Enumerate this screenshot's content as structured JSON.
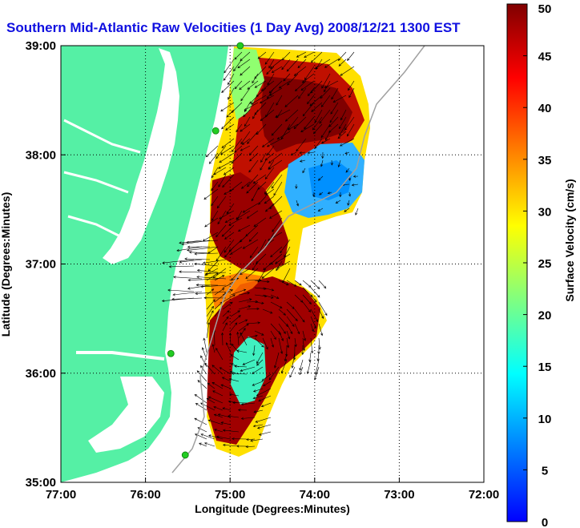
{
  "chart_data": {
    "type": "heatmap",
    "title": "Southern Mid-Atlantic Raw Velocities (1 Day Avg) 2008/12/21 1300 EST",
    "xlabel": "Longitude (Degrees:Minutes)",
    "ylabel": "Latitude (Degrees:Minutes)",
    "colorbar_label": "Surface Velocity (cm/s)",
    "xlim": [
      -77,
      -72
    ],
    "ylim": [
      35,
      39
    ],
    "clim": [
      0,
      50
    ],
    "grid": true,
    "x_ticks": [
      {
        "value": -77,
        "label": "77:00"
      },
      {
        "value": -76,
        "label": "76:00"
      },
      {
        "value": -75,
        "label": "75:00"
      },
      {
        "value": -74,
        "label": "74:00"
      },
      {
        "value": -73,
        "label": "73:00"
      },
      {
        "value": -72,
        "label": "72:00"
      }
    ],
    "y_ticks": [
      {
        "value": 35,
        "label": "35:00"
      },
      {
        "value": 36,
        "label": "36:00"
      },
      {
        "value": 37,
        "label": "37:00"
      },
      {
        "value": 38,
        "label": "38:00"
      },
      {
        "value": 39,
        "label": "39:00"
      }
    ],
    "colorbar_ticks": [
      0,
      5,
      10,
      15,
      20,
      25,
      30,
      35,
      40,
      45,
      50
    ],
    "colormap": [
      "#0000ff",
      "#0080ff",
      "#00ffff",
      "#80ff80",
      "#ffff00",
      "#ff8000",
      "#ff0000",
      "#800000"
    ],
    "land_color": "#55f0a5",
    "radar_site_color": "#22cc22",
    "radar_sites": [
      {
        "lon": -74.88,
        "lat": 39.0
      },
      {
        "lon": -75.17,
        "lat": 38.22
      },
      {
        "lon": -75.7,
        "lat": 36.18
      },
      {
        "lon": -75.53,
        "lat": 35.25
      }
    ],
    "velocity_regions": [
      {
        "name": "northern-coastal-jet",
        "lon": [
          -75.2,
          -73.7
        ],
        "lat": [
          37.4,
          39.0
        ],
        "speed": 45
      },
      {
        "name": "offshore-slow-zone",
        "lon": [
          -74.4,
          -73.4
        ],
        "lat": [
          37.4,
          38.1
        ],
        "speed": 9
      },
      {
        "name": "central-coastal-jet",
        "lon": [
          -75.3,
          -74.2
        ],
        "lat": [
          36.7,
          37.6
        ],
        "speed": 48
      },
      {
        "name": "southern-eddy",
        "lon": [
          -75.3,
          -73.9
        ],
        "lat": [
          35.3,
          36.6
        ],
        "speed": 44
      },
      {
        "name": "eddy-core",
        "lon": [
          -75.05,
          -74.75
        ],
        "lat": [
          35.6,
          36.3
        ],
        "speed": 15
      }
    ]
  }
}
